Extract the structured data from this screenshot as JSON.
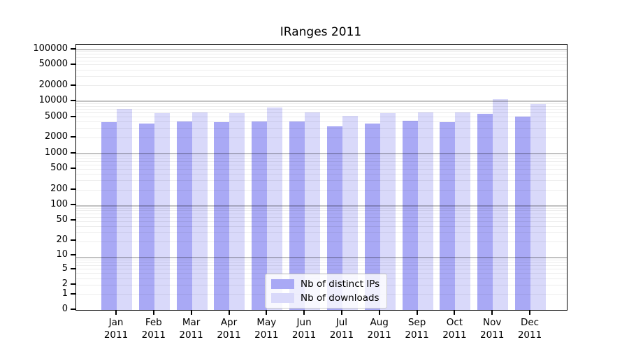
{
  "chart_data": {
    "type": "bar",
    "title": "IRanges 2011",
    "categories": [
      "Jan 2011",
      "Feb 2011",
      "Mar 2011",
      "Apr 2011",
      "May 2011",
      "Jun 2011",
      "Jul 2011",
      "Aug 2011",
      "Sep 2011",
      "Oct 2011",
      "Nov 2011",
      "Dec 2011"
    ],
    "series": [
      {
        "name": "Nb of distinct IPs",
        "color": "#a9a9f5",
        "values": [
          3970,
          3780,
          4180,
          3970,
          4100,
          4180,
          3310,
          3760,
          4310,
          4050,
          5820,
          5040
        ]
      },
      {
        "name": "Nb of downloads",
        "color": "#d9d9fa",
        "values": [
          7190,
          5990,
          6170,
          5990,
          7730,
          6120,
          5310,
          5950,
          6170,
          6120,
          11090,
          8950
        ]
      }
    ],
    "values_are_estimates": true,
    "xlabel": "",
    "ylabel": "",
    "yscale": "log10(1+x)",
    "yticks": [
      0,
      1,
      2,
      5,
      10,
      20,
      50,
      100,
      200,
      500,
      1000,
      2000,
      5000,
      10000,
      20000,
      50000,
      100000
    ],
    "ylim": [
      0,
      122000
    ],
    "grid": "horizontal, minor light + decade lines darker, drawn over bars",
    "legend_position": "lower center inside plot",
    "legend_entries": [
      "Nb of distinct IPs",
      "Nb of downloads"
    ]
  }
}
